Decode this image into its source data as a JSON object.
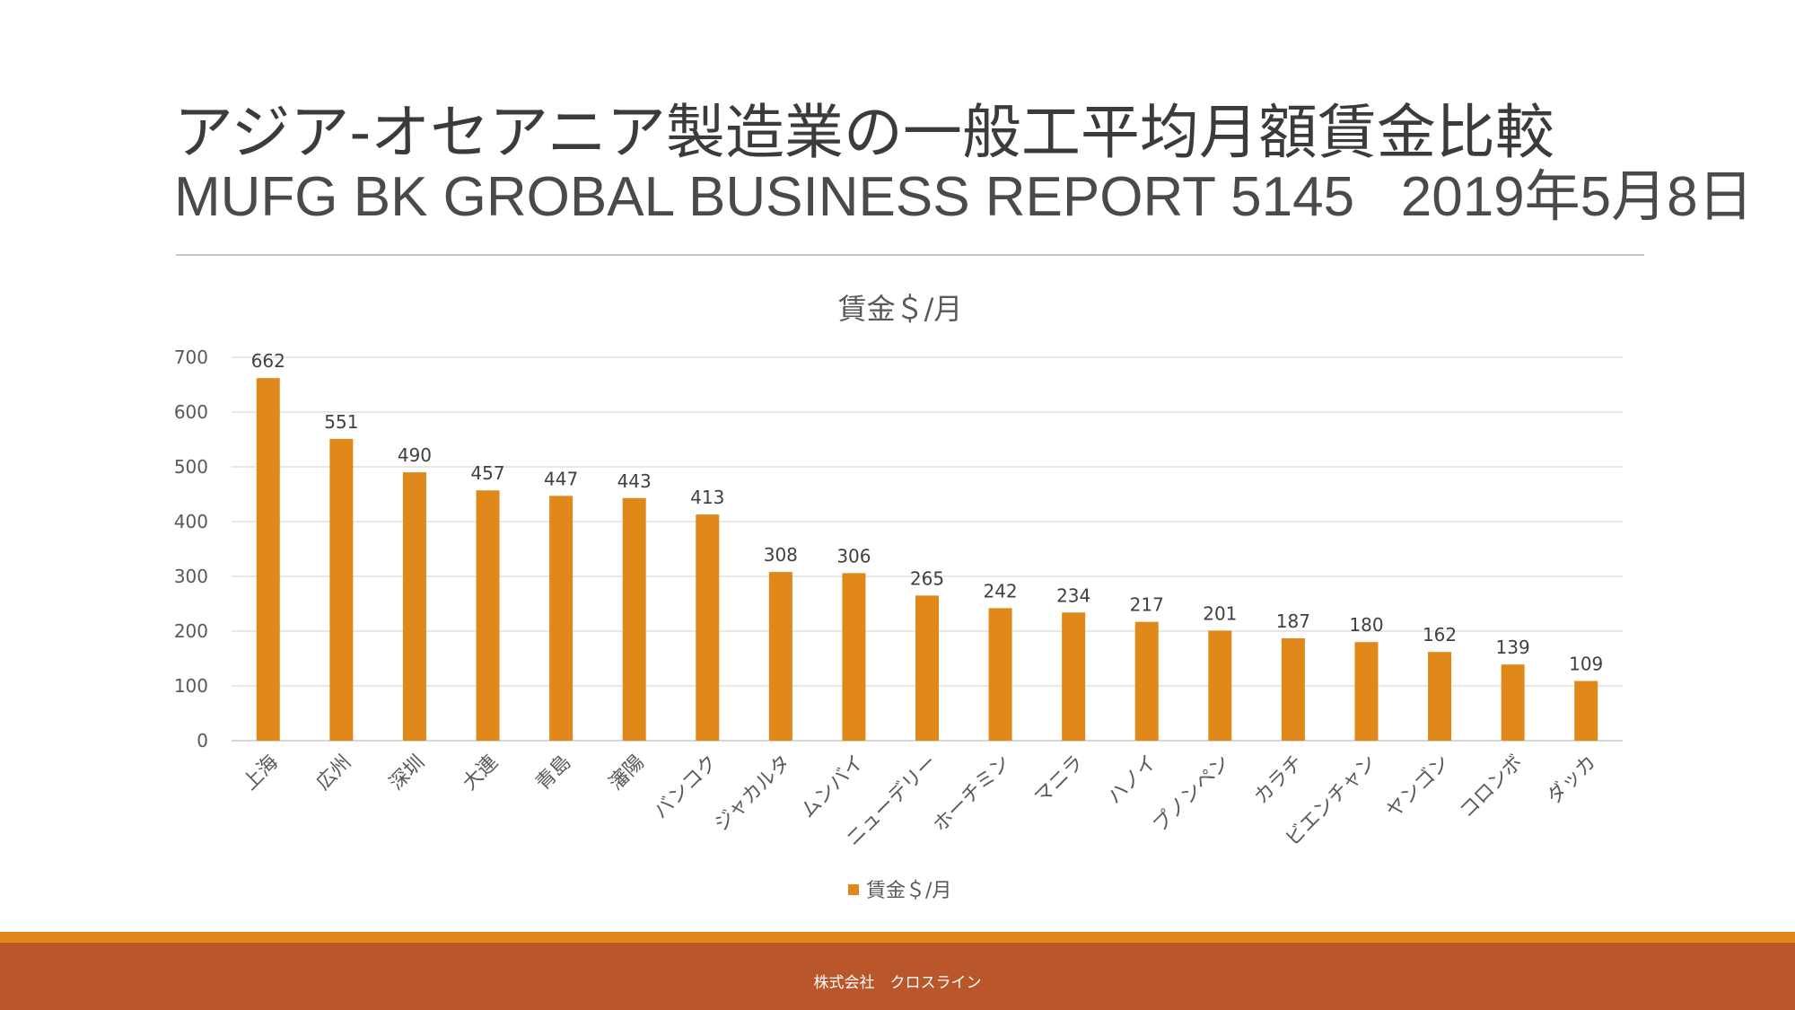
{
  "slide": {
    "title": "アジア-オセアニア製造業の一般工平均月額賃金比較",
    "subtitle": "MUFG BK GROBAL BUSINESS REPORT 5145   2019年5月8日",
    "footer": "株式会社　クロスライン"
  },
  "colors": {
    "bar": "#e0891a",
    "footer_bar": "#b9562a",
    "footer_stripe": "#e0891a"
  },
  "chart_data": {
    "type": "bar",
    "title": "賃金＄/月",
    "categories": [
      "上海",
      "広州",
      "深圳",
      "大連",
      "青島",
      "瀋陽",
      "バンコク",
      "ジャカルタ",
      "ムンバイ",
      "ニューデリー",
      "ホーチミン",
      "マニラ",
      "ハノイ",
      "プノンペン",
      "カラチ",
      "ビエンチャン",
      "ヤンゴン",
      "コロンボ",
      "ダッカ"
    ],
    "series": [
      {
        "name": "賃金＄/月",
        "values": [
          662,
          551,
          490,
          457,
          447,
          443,
          413,
          308,
          306,
          265,
          242,
          234,
          217,
          201,
          187,
          180,
          162,
          139,
          109
        ]
      }
    ],
    "ylim": [
      0,
      700
    ],
    "yticks": [
      0,
      100,
      200,
      300,
      400,
      500,
      600,
      700
    ],
    "grid": true,
    "legend": "bottom",
    "xlabel": "",
    "ylabel": ""
  }
}
